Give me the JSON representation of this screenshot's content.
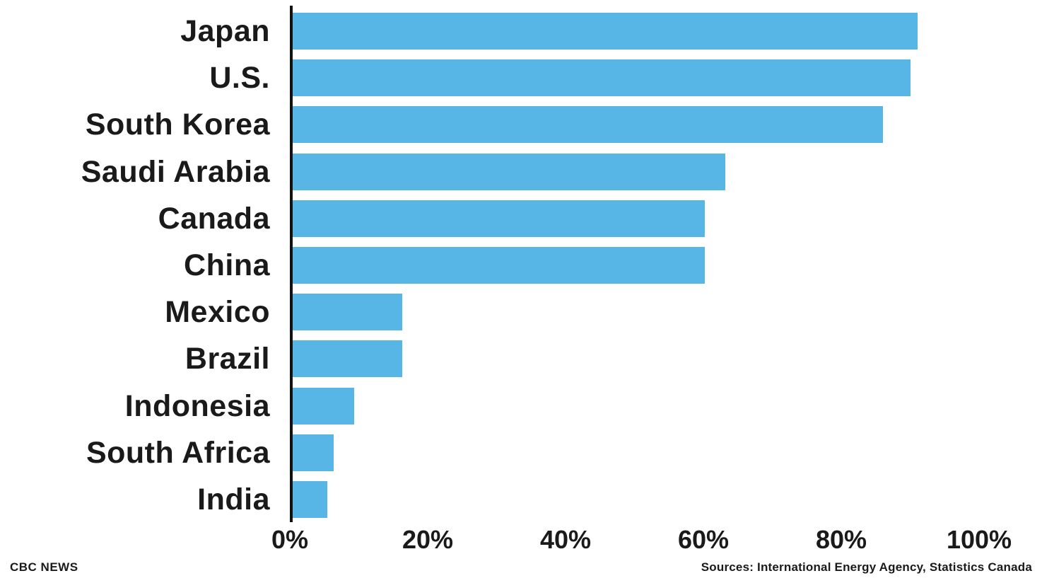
{
  "chart_data": {
    "type": "bar",
    "orientation": "horizontal",
    "title": "",
    "xlabel": "",
    "ylabel": "",
    "categories": [
      "Japan",
      "U.S.",
      "South Korea",
      "Saudi Arabia",
      "Canada",
      "China",
      "Mexico",
      "Brazil",
      "Indonesia",
      "South Africa",
      "India"
    ],
    "values": [
      91,
      90,
      86,
      63,
      60,
      60,
      16,
      16,
      9,
      6,
      5
    ],
    "unit": "%",
    "xlim": [
      0,
      100
    ],
    "x_ticks": [
      "0%",
      "20%",
      "40%",
      "60%",
      "80%",
      "100%"
    ],
    "x_tick_values": [
      0,
      20,
      40,
      60,
      80,
      100
    ],
    "grid": false,
    "legend_position": "none",
    "bar_color": "#57b6e6"
  },
  "footer": {
    "source_left": "CBC NEWS",
    "source_right": "Sources: International Energy Agency, Statistics Canada"
  },
  "colors": {
    "bar": "#57b6e6",
    "axis": "#111111",
    "text": "#1a1a1a",
    "background": "#ffffff"
  }
}
